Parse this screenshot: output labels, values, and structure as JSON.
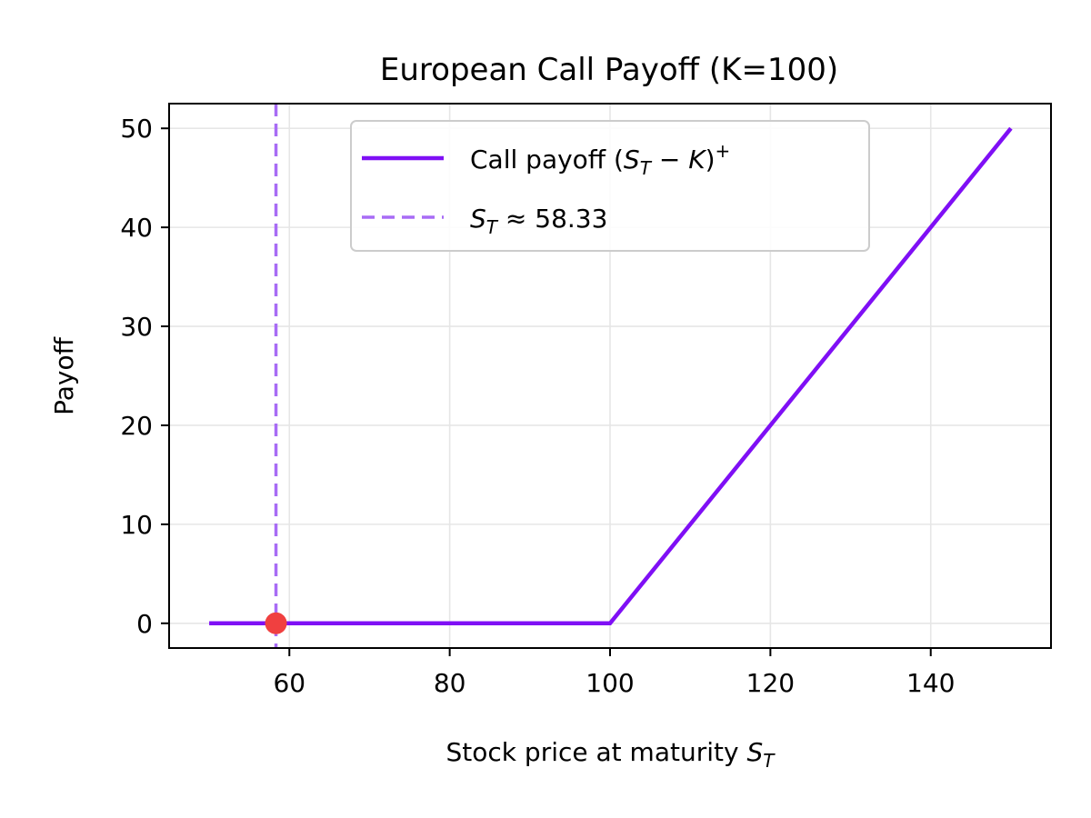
{
  "chart_data": {
    "type": "line",
    "title": "European Call Payoff (K=100)",
    "xlabel": "Stock price at maturity S_T",
    "ylabel": "Payoff",
    "xlim": [
      45.0,
      155.0
    ],
    "ylim": [
      -2.5,
      52.5
    ],
    "xticks": [
      60,
      80,
      100,
      120,
      140
    ],
    "yticks": [
      0,
      10,
      20,
      30,
      40,
      50
    ],
    "grid": true,
    "legend_position": "upper center",
    "strike": 100,
    "series": [
      {
        "name": "Call payoff (S_T − K)⁺",
        "style": "solid",
        "color": "#7f0ff5",
        "x": [
          50,
          100,
          150
        ],
        "y": [
          0,
          0,
          50
        ]
      },
      {
        "name": "S_T ≈ 58.33",
        "style": "dashed",
        "color": "#a86cf5",
        "vertical_x": 58.33
      }
    ],
    "marker": {
      "x": 58.33,
      "y": 0,
      "color": "#f04040"
    }
  }
}
